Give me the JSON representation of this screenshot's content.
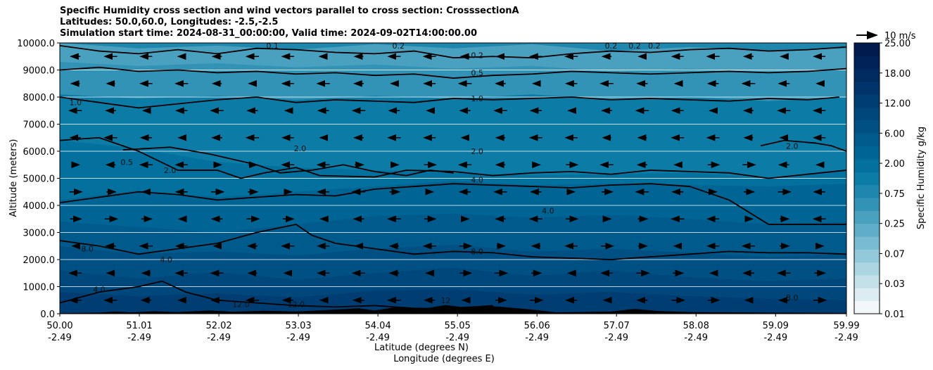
{
  "title_lines": [
    "Specific Humidity cross section and wind vectors parallel to cross section: CrosssectionA",
    "Latitudes: 50.0,60.0, Longitudes: -2.5,-2.5",
    "Simulation start time: 2024-08-31_00:00:00, Valid time: 2024-09-02T14:00:00.00"
  ],
  "quiver_key": "10 m/s",
  "colorbar": {
    "label": "Specific Humidity g/kg",
    "ticks": [
      "25.00",
      "18.00",
      "12.00",
      "6.00",
      "2.00",
      "0.75",
      "0.25",
      "0.07",
      "0.03",
      "0.01"
    ],
    "colors": [
      "#f2f8fa",
      "#dcecf1",
      "#c4e1ea",
      "#acd5e2",
      "#92c8da",
      "#79bbd1",
      "#5fadc8",
      "#4aa0bf",
      "#3293b6",
      "#1f87ad",
      "#0c7ba5",
      "#03709d",
      "#006594",
      "#005b8c",
      "#005083",
      "#00477b",
      "#003d72",
      "#00346a",
      "#002b61",
      "#002258",
      "#001a4e"
    ]
  },
  "chart_data": {
    "type": "contour",
    "xlabel": "Latitude (degrees N)",
    "xlabel2": "Longitude (degrees E)",
    "ylabel": "Altitude (meters)",
    "xtick_lat": [
      "50.00",
      "51.01",
      "52.02",
      "53.03",
      "54.04",
      "55.05",
      "56.06",
      "57.07",
      "58.08",
      "59.09",
      "59.99"
    ],
    "xtick_lon": [
      "-2.49",
      "-2.49",
      "-2.49",
      "-2.49",
      "-2.49",
      "-2.49",
      "-2.49",
      "-2.49",
      "-2.49",
      "-2.49",
      "-2.49"
    ],
    "yticks": [
      "0.0",
      "1000.0",
      "2000.0",
      "3000.0",
      "4000.0",
      "5000.0",
      "6000.0",
      "7000.0",
      "8000.0",
      "9000.0",
      "10000.0"
    ],
    "ylim": [
      0,
      10000
    ],
    "grid": "horizontal",
    "contour_levels": [
      0.2,
      0.5,
      1.0,
      2.0,
      4.0,
      8.0,
      12.0
    ],
    "contour_labels": [
      {
        "text": "0.2",
        "x": 55.3,
        "y": 9550
      },
      {
        "text": "0.5",
        "x": 55.3,
        "y": 8900
      },
      {
        "text": "1.0",
        "x": 55.3,
        "y": 7950
      },
      {
        "text": "2.0",
        "x": 55.3,
        "y": 6000
      },
      {
        "text": "2.0",
        "x": 51.4,
        "y": 5300
      },
      {
        "text": "2.0",
        "x": 53.05,
        "y": 6100
      },
      {
        "text": "4.0",
        "x": 55.3,
        "y": 4950
      },
      {
        "text": "4.0",
        "x": 56.2,
        "y": 3800
      },
      {
        "text": "8.0",
        "x": 55.3,
        "y": 2300
      },
      {
        "text": "8.0",
        "x": 50.35,
        "y": 2400
      },
      {
        "text": "12.0",
        "x": 52.3,
        "y": 350
      },
      {
        "text": "12.0",
        "x": 53.0,
        "y": 350
      },
      {
        "text": "12",
        "x": 54.9,
        "y": 500
      },
      {
        "text": "1.0",
        "x": 50.2,
        "y": 7800
      },
      {
        "text": "0.5",
        "x": 50.85,
        "y": 5600
      },
      {
        "text": "4.0",
        "x": 50.5,
        "y": 900
      },
      {
        "text": "4.0",
        "x": 51.35,
        "y": 2000
      },
      {
        "text": "2.0",
        "x": 59.3,
        "y": 6200
      },
      {
        "text": "8.0",
        "x": 59.3,
        "y": 600
      },
      {
        "text": "0.2",
        "x": 57.0,
        "y": 9900
      },
      {
        "text": "0.2",
        "x": 57.3,
        "y": 9900
      },
      {
        "text": "0.2",
        "x": 57.55,
        "y": 9900
      },
      {
        "text": "0.2",
        "x": 54.3,
        "y": 9900
      },
      {
        "text": "0.1",
        "x": 52.7,
        "y": 9900
      }
    ]
  }
}
